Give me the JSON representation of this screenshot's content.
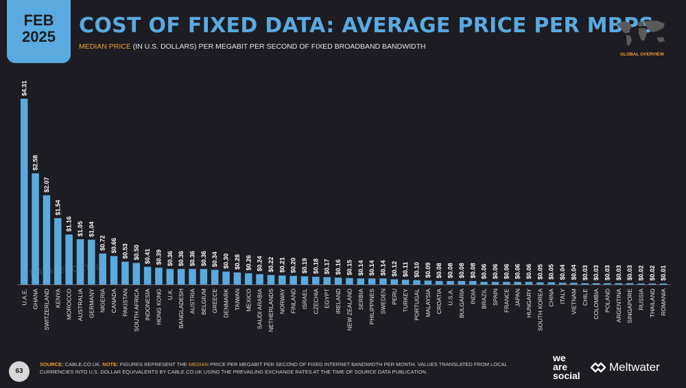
{
  "header": {
    "month": "FEB",
    "year": "2025",
    "title": "COST OF FIXED DATA: AVERAGE PRICE PER MBPS",
    "subtitle_highlight": "MEDIAN PRICE",
    "subtitle_rest": " (IN U.S. DOLLARS) PER MEGABIT PER SECOND OF FIXED BROADBAND BANDWIDTH",
    "map_label": "GLOBAL OVERVIEW"
  },
  "watermark": "DATAREPORTAL",
  "footer": {
    "page_number": "63",
    "source_key": "SOURCE:",
    "source_text": " CABLE.CO.UK. ",
    "note_key": "NOTE:",
    "note_text_1": " FIGURES REPRESENT THE ",
    "note_highlight": "MEDIAN",
    "note_text_2": " PRICE PER MEGABIT PER SECOND OF FIXED INTERNET BANDWIDTH PER MONTH. VALUES TRANSLATED FROM LOCAL CURRENCIES INTO U.S. DOLLAR EQUIVALENTS BY CABLE.CO.UK USING THE PREVAILING EXCHANGE RATES AT THE TIME OF SOURCE DATA PUBLICATION.",
    "brand1_line1": "we",
    "brand1_line2": "are",
    "brand1_line3": "social",
    "brand2": "Meltwater"
  },
  "colors": {
    "bar": "#5aaae0",
    "accent": "#f0a030",
    "background": "#1c1c22"
  },
  "chart_data": {
    "type": "bar",
    "title": "COST OF FIXED DATA: AVERAGE PRICE PER MBPS",
    "categories": [
      "U.A.E.",
      "GHANA",
      "SWITZERLAND",
      "KENYA",
      "MOROCCO",
      "AUSTRALIA",
      "GERMANY",
      "NIGERIA",
      "CANADA",
      "PAKISTAN",
      "SOUTH AFRICA",
      "INDONESIA",
      "HONG KONG",
      "U.K.",
      "BANGLADESH",
      "AUSTRIA",
      "BELGIUM",
      "GREECE",
      "DENMARK",
      "TAIWAN",
      "MEXICO",
      "SAUDI ARABIA",
      "NETHERLANDS",
      "NORWAY",
      "FINLAND",
      "ISRAEL",
      "CZECHIA",
      "EGYPT",
      "IRELAND",
      "NEW ZEALAND",
      "SERBIA",
      "PHILIPPINES",
      "SWEDEN",
      "PERU",
      "TURKEY",
      "PORTUGAL",
      "MALAYSIA",
      "CROATIA",
      "U.S.A.",
      "BULGARIA",
      "INDIA",
      "BRAZIL",
      "SPAIN",
      "FRANCE",
      "JAPAN",
      "HUNGARY",
      "SOUTH KOREA",
      "CHINA",
      "ITALY",
      "VIETNAM",
      "CHILE",
      "COLOMBIA",
      "POLAND",
      "ARGENTINA",
      "SINGAPORE",
      "RUSSIA",
      "THAILAND",
      "ROMANIA"
    ],
    "values": [
      4.31,
      2.58,
      2.07,
      1.54,
      1.16,
      1.05,
      1.04,
      0.72,
      0.66,
      0.53,
      0.5,
      0.41,
      0.39,
      0.36,
      0.36,
      0.36,
      0.36,
      0.34,
      0.3,
      0.28,
      0.26,
      0.24,
      0.22,
      0.21,
      0.2,
      0.19,
      0.18,
      0.17,
      0.16,
      0.15,
      0.14,
      0.14,
      0.14,
      0.12,
      0.11,
      0.1,
      0.09,
      0.08,
      0.08,
      0.08,
      0.08,
      0.06,
      0.06,
      0.06,
      0.06,
      0.06,
      0.05,
      0.05,
      0.04,
      0.04,
      0.03,
      0.03,
      0.03,
      0.03,
      0.03,
      0.02,
      0.02,
      0.01
    ],
    "labels": [
      "$4.31",
      "$2.58",
      "$2.07",
      "$1.54",
      "$1.16",
      "$1.05",
      "$1.04",
      "$0.72",
      "$0.66",
      "$0.53",
      "$0.50",
      "$0.41",
      "$0.39",
      "$0.36",
      "$0.36",
      "$0.36",
      "$0.36",
      "$0.34",
      "$0.30",
      "$0.28",
      "$0.26",
      "$0.24",
      "$0.22",
      "$0.21",
      "$0.20",
      "$0.19",
      "$0.18",
      "$0.17",
      "$0.16",
      "$0.15",
      "$0.14",
      "$0.14",
      "$0.14",
      "$0.12",
      "$0.11",
      "$0.10",
      "$0.09",
      "$0.08",
      "$0.08",
      "$0.08",
      "$0.08",
      "$0.06",
      "$0.06",
      "$0.06",
      "$0.06",
      "$0.06",
      "$0.05",
      "$0.05",
      "$0.04",
      "$0.04",
      "$0.03",
      "$0.03",
      "$0.03",
      "$0.03",
      "$0.03",
      "$0.02",
      "$0.02",
      "$0.01"
    ],
    "ylim": [
      0,
      4.31
    ],
    "grid": false,
    "legend": "none"
  }
}
